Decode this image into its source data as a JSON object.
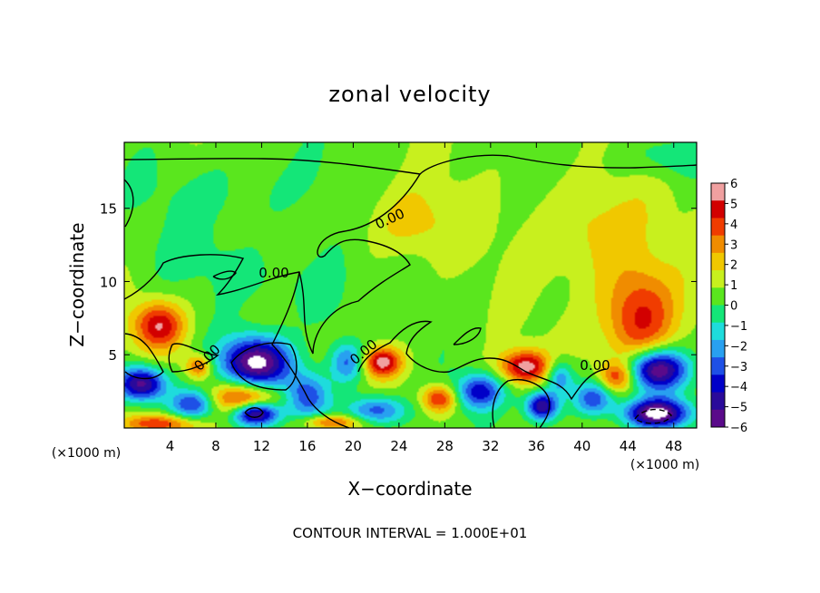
{
  "chart_data": {
    "type": "heatmap",
    "title": "zonal velocity",
    "xlabel": "X−coordinate",
    "ylabel": "Z−coordinate",
    "x_unit_left": "(×1000 m)",
    "x_unit_right": "(×1000 m)",
    "xlim": [
      0,
      50
    ],
    "ylim": [
      0,
      19.5
    ],
    "x_ticks": [
      4,
      8,
      12,
      16,
      20,
      24,
      28,
      32,
      36,
      40,
      44,
      48
    ],
    "y_ticks": [
      5,
      10,
      15
    ],
    "colorbar": {
      "ticks": [
        6,
        5,
        4,
        3,
        2,
        1,
        0,
        -1,
        -2,
        -3,
        -4,
        -5,
        -6
      ],
      "range": [
        -6,
        6
      ],
      "colors": [
        "#5a0a8a",
        "#2a0a9a",
        "#0000c8",
        "#1e50e6",
        "#28a0f0",
        "#1edcdc",
        "#14e678",
        "#5ae61e",
        "#c8f01e",
        "#f0c800",
        "#f08c00",
        "#f03c00",
        "#d20000",
        "#f0a0a0"
      ]
    },
    "contour_interval": "CONTOUR INTERVAL = 1.000E+01",
    "contour_labels": [
      "0.00",
      "0.00",
      "0.00",
      "0.00",
      "0.00"
    ],
    "background_value": 0.6,
    "features": [
      {
        "x": 3.0,
        "z": 7.0,
        "v": 4.5,
        "rx": 2.2,
        "rz": 1.6
      },
      {
        "x": 6.5,
        "z": 4.2,
        "v": 3.5,
        "rx": 1.1,
        "rz": 0.8
      },
      {
        "x": 1.5,
        "z": 3.0,
        "v": -6.5,
        "rx": 2.2,
        "rz": 1.2
      },
      {
        "x": 6.0,
        "z": 1.6,
        "v": -4.5,
        "rx": 2.0,
        "rz": 1.0
      },
      {
        "x": 11.5,
        "z": 4.5,
        "v": -6.8,
        "rx": 3.0,
        "rz": 1.7
      },
      {
        "x": 10.5,
        "z": 2.0,
        "v": 4.5,
        "rx": 3.0,
        "rz": 1.1
      },
      {
        "x": 11.5,
        "z": 1.0,
        "v": -6.5,
        "rx": 2.0,
        "rz": 0.8
      },
      {
        "x": 16.0,
        "z": 2.2,
        "v": -4.0,
        "rx": 2.0,
        "rz": 1.6
      },
      {
        "x": 19.5,
        "z": 4.5,
        "v": -3.5,
        "rx": 1.6,
        "rz": 1.4
      },
      {
        "x": 22.5,
        "z": 4.5,
        "v": 5.0,
        "rx": 1.7,
        "rz": 1.0
      },
      {
        "x": 22.0,
        "z": 1.2,
        "v": -4.0,
        "rx": 2.5,
        "rz": 1.0
      },
      {
        "x": 27.5,
        "z": 2.0,
        "v": 4.0,
        "rx": 1.5,
        "rz": 0.9
      },
      {
        "x": 31.0,
        "z": 2.5,
        "v": -4.5,
        "rx": 2.0,
        "rz": 1.2
      },
      {
        "x": 35.0,
        "z": 4.2,
        "v": 5.0,
        "rx": 2.2,
        "rz": 1.1
      },
      {
        "x": 36.5,
        "z": 1.5,
        "v": -6.0,
        "rx": 1.4,
        "rz": 1.0
      },
      {
        "x": 38.0,
        "z": 3.5,
        "v": -3.5,
        "rx": 1.2,
        "rz": 1.2
      },
      {
        "x": 41.0,
        "z": 2.0,
        "v": -4.0,
        "rx": 1.8,
        "rz": 1.2
      },
      {
        "x": 45.0,
        "z": 7.5,
        "v": 4.2,
        "rx": 3.2,
        "rz": 3.5
      },
      {
        "x": 46.5,
        "z": 4.0,
        "v": -7.0,
        "rx": 2.6,
        "rz": 1.4
      },
      {
        "x": 46.5,
        "z": 1.0,
        "v": -7.0,
        "rx": 2.8,
        "rz": 1.0
      },
      {
        "x": 43.0,
        "z": 3.5,
        "v": 3.5,
        "rx": 1.5,
        "rz": 1.0
      },
      {
        "x": 25.0,
        "z": 14.0,
        "v": 1.6,
        "rx": 4.0,
        "rz": 2.5
      },
      {
        "x": 41.0,
        "z": 13.5,
        "v": 1.7,
        "rx": 5.0,
        "rz": 3.5
      },
      {
        "x": 10.0,
        "z": 16.0,
        "v": -0.9,
        "rx": 8.0,
        "rz": 3.0
      },
      {
        "x": 17.5,
        "z": 9.0,
        "v": -1.3,
        "rx": 2.5,
        "rz": 3.0
      },
      {
        "x": 13.0,
        "z": 10.0,
        "v": -0.7,
        "rx": 4.0,
        "rz": 2.0
      },
      {
        "x": 7.0,
        "z": 11.5,
        "v": -0.6,
        "rx": 5.0,
        "rz": 2.0
      },
      {
        "x": 48.0,
        "z": 18.5,
        "v": -1.5,
        "rx": 4.0,
        "rz": 1.5
      },
      {
        "x": 3.0,
        "z": 0.3,
        "v": 3.5,
        "rx": 3.0,
        "rz": 0.6
      },
      {
        "x": 18.0,
        "z": 0.4,
        "v": 3.5,
        "rx": 2.5,
        "rz": 0.5
      }
    ]
  }
}
